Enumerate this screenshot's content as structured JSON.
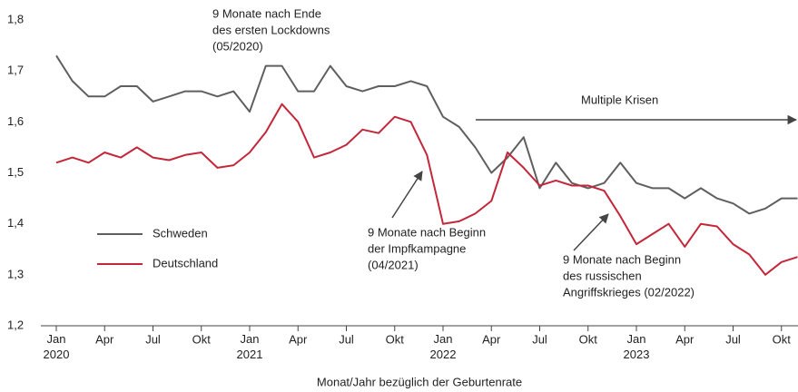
{
  "chart_data": {
    "type": "line",
    "xlabel": "Monat/Jahr bezüglich der Geburtenrate",
    "categories": [
      "Jan\n2020",
      null,
      null,
      "Apr",
      null,
      null,
      "Jul",
      null,
      null,
      "Okt",
      null,
      null,
      "Jan\n2021",
      null,
      null,
      "Apr",
      null,
      null,
      "Jul",
      null,
      null,
      "Okt",
      null,
      null,
      "Jan\n2022",
      null,
      null,
      "Apr",
      null,
      null,
      "Jul",
      null,
      null,
      "Okt",
      null,
      null,
      "Jan\n2023",
      null,
      null,
      "Apr",
      null,
      null,
      "Jul",
      null,
      null,
      "Okt",
      null
    ],
    "series": [
      {
        "name": "Schweden",
        "color": "#5f5f5f",
        "values": [
          1.73,
          1.68,
          1.65,
          1.65,
          1.67,
          1.67,
          1.64,
          1.65,
          1.66,
          1.66,
          1.65,
          1.66,
          1.62,
          1.71,
          1.71,
          1.66,
          1.66,
          1.71,
          1.67,
          1.66,
          1.67,
          1.67,
          1.68,
          1.67,
          1.61,
          1.59,
          1.55,
          1.5,
          1.53,
          1.57,
          1.47,
          1.52,
          1.48,
          1.47,
          1.48,
          1.52,
          1.48,
          1.47,
          1.47,
          1.45,
          1.47,
          1.45,
          1.44,
          1.42,
          1.43,
          1.45,
          1.45
        ]
      },
      {
        "name": "Deutschland",
        "color": "#c4263a",
        "values": [
          1.52,
          1.53,
          1.52,
          1.54,
          1.53,
          1.55,
          1.53,
          1.525,
          1.535,
          1.54,
          1.51,
          1.515,
          1.54,
          1.58,
          1.635,
          1.6,
          1.53,
          1.54,
          1.555,
          1.585,
          1.578,
          1.61,
          1.6,
          1.535,
          1.4,
          1.405,
          1.42,
          1.445,
          1.54,
          1.51,
          1.475,
          1.485,
          1.475,
          1.475,
          1.465,
          1.415,
          1.36,
          1.38,
          1.4,
          1.355,
          1.4,
          1.395,
          1.36,
          1.34,
          1.3,
          1.325,
          1.335
        ]
      }
    ],
    "ylim": [
      1.2,
      1.8
    ],
    "yticks": [
      {
        "value": 1.2,
        "label": "1,2"
      },
      {
        "value": 1.3,
        "label": "1,3"
      },
      {
        "value": 1.4,
        "label": "1,4"
      },
      {
        "value": 1.5,
        "label": "1,5"
      },
      {
        "value": 1.6,
        "label": "1,6"
      },
      {
        "value": 1.7,
        "label": "1,7"
      },
      {
        "value": 1.8,
        "label": "1,8"
      }
    ],
    "grid": false,
    "legend": "left",
    "annotations": [
      {
        "lines": [
          "9 Monate nach Ende",
          "des ersten Lockdowns",
          "(05/2020)"
        ]
      },
      {
        "lines": [
          "9 Monate nach Beginn",
          "der Impfkampagne",
          "(04/2021)"
        ]
      },
      {
        "lines": [
          "9 Monate nach Beginn",
          "des russischen",
          "Angriffskrieges (02/2022)"
        ]
      },
      {
        "lines": [
          "Multiple Krisen"
        ]
      }
    ]
  }
}
